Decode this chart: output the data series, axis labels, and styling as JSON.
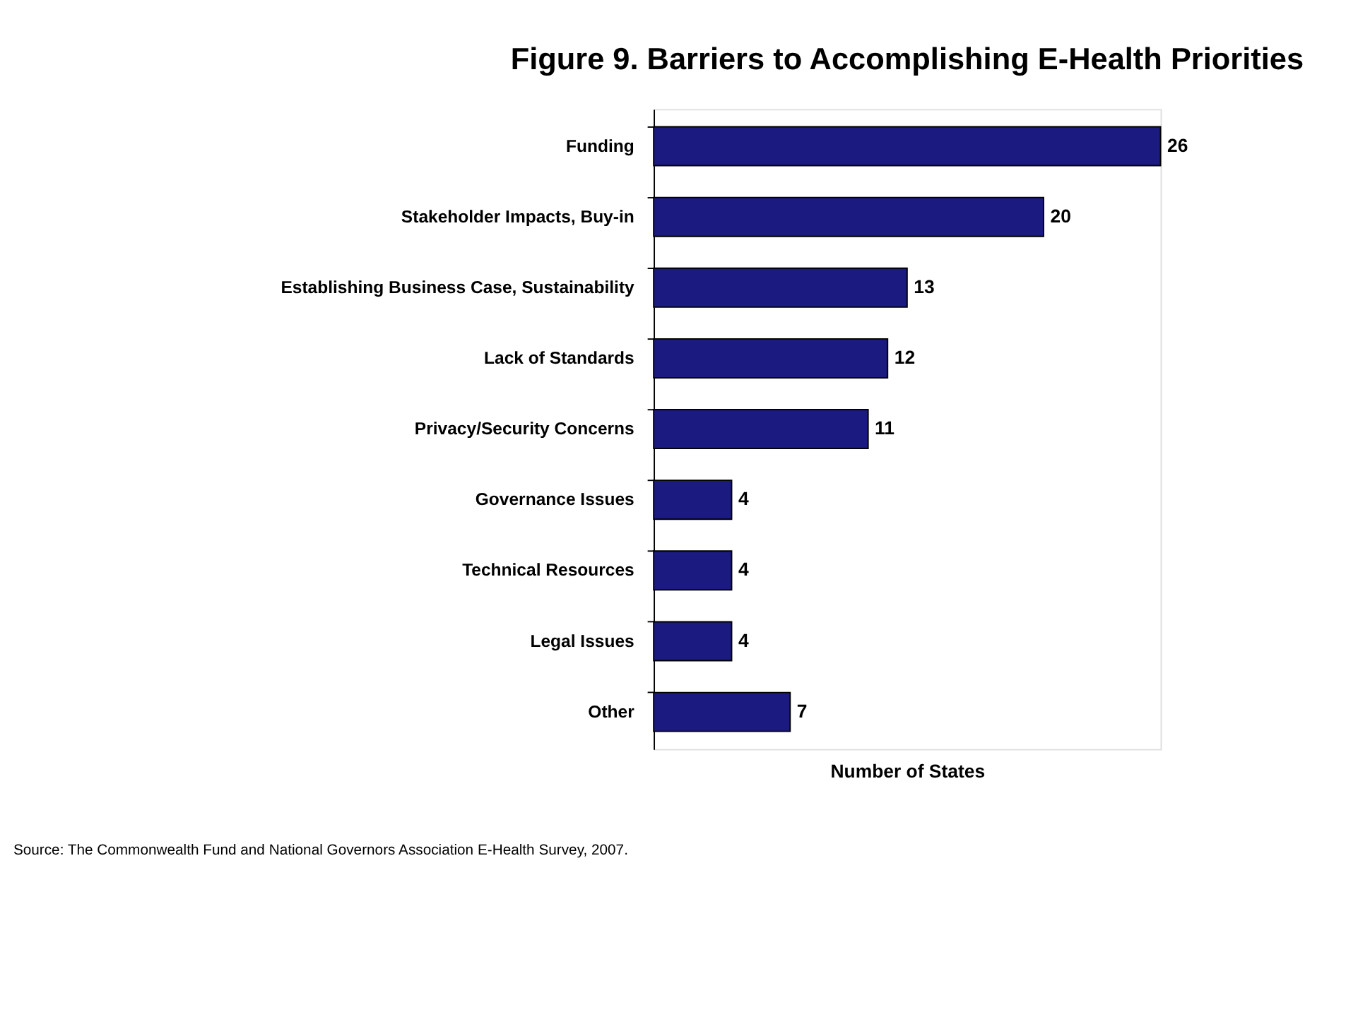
{
  "chart_data": {
    "type": "bar",
    "orientation": "horizontal",
    "title": "Figure 9. Barriers to Accomplishing E-Health Priorities",
    "categories": [
      "Funding",
      "Stakeholder Impacts, Buy-in",
      "Establishing Business Case, Sustainability",
      "Lack of Standards",
      "Privacy/Security Concerns",
      "Governance Issues",
      "Technical Resources",
      "Legal Issues",
      "Other"
    ],
    "values": [
      26,
      20,
      13,
      12,
      11,
      4,
      4,
      4,
      7
    ],
    "color": "#1a1a80",
    "data_labels": true,
    "xlabel": "Number of States",
    "annotations": [
      "Source: The Commonwealth Fund and National Governors Association E-Health Survey, 2007."
    ]
  }
}
